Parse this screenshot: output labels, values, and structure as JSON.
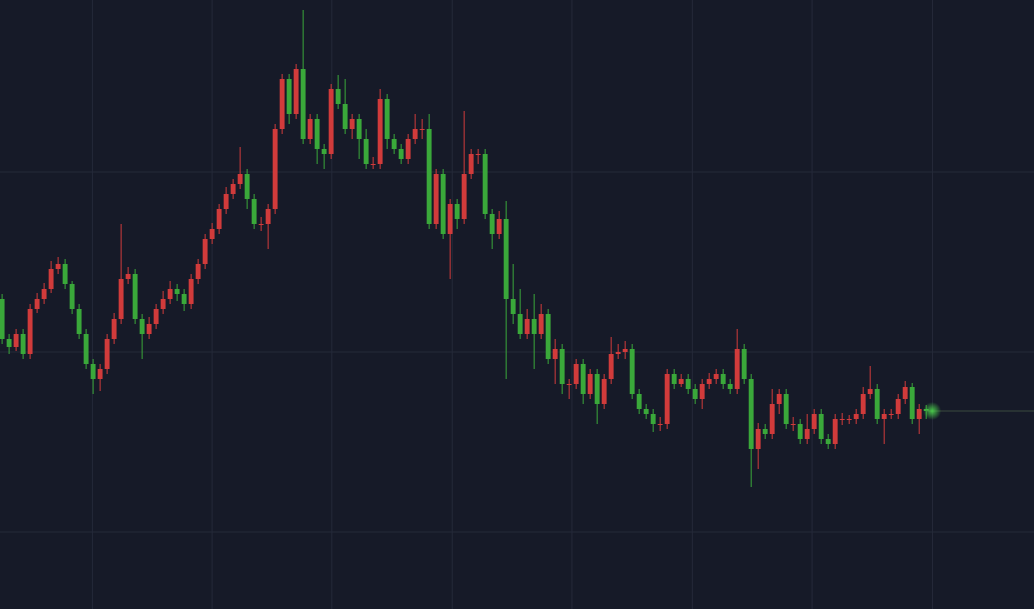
{
  "chart_data": {
    "type": "candlestick",
    "up_color": "#d13b3b",
    "down_color": "#3aa83a",
    "grid": true,
    "last_price_line": true,
    "ylim": [
      0,
      609
    ],
    "yticks": [
      77,
      257,
      437
    ],
    "xlim": [
      -0.3,
      147.4
    ],
    "xticks": [
      12.9,
      30,
      47.1,
      64.3,
      81.4,
      98.6,
      115.7,
      132.9
    ],
    "open": [
      310,
      270,
      262,
      275,
      255,
      300,
      310,
      320,
      340,
      345,
      325,
      300,
      275,
      245,
      230,
      240,
      270,
      290,
      330,
      335,
      290,
      275,
      285,
      300,
      310,
      320,
      315,
      305,
      330,
      345,
      370,
      380,
      400,
      415,
      425,
      435,
      410,
      385,
      385,
      400,
      480,
      530,
      495,
      540,
      470,
      490,
      460,
      455,
      520,
      505,
      480,
      490,
      470,
      445,
      445,
      510,
      470,
      460,
      450,
      470,
      480,
      480,
      385,
      435,
      375,
      405,
      390,
      435,
      455,
      455,
      395,
      375,
      390,
      310,
      295,
      275,
      290,
      275,
      295,
      250,
      260,
      225,
      225,
      245,
      215,
      235,
      205,
      230,
      255,
      257,
      260,
      215,
      200,
      195,
      185,
      185,
      235,
      225,
      230,
      220,
      210,
      225,
      230,
      235,
      225,
      220,
      260,
      230,
      160,
      180,
      175,
      205,
      215,
      185,
      185,
      170,
      180,
      195,
      170,
      165,
      190,
      190,
      190,
      195,
      215,
      220,
      190,
      195,
      195,
      210,
      222,
      190,
      200
    ],
    "high": [
      315,
      275,
      280,
      280,
      305,
      316,
      326,
      348,
      352,
      350,
      328,
      305,
      280,
      250,
      245,
      275,
      296,
      385,
      342,
      340,
      295,
      292,
      305,
      318,
      328,
      325,
      320,
      335,
      350,
      375,
      386,
      405,
      422,
      430,
      462,
      440,
      415,
      392,
      405,
      485,
      535,
      535,
      545,
      599,
      495,
      495,
      465,
      525,
      534,
      530,
      495,
      495,
      480,
      452,
      520,
      515,
      475,
      465,
      475,
      495,
      490,
      495,
      440,
      440,
      410,
      410,
      498,
      460,
      460,
      460,
      400,
      398,
      408,
      345,
      320,
      300,
      315,
      305,
      300,
      270,
      265,
      230,
      250,
      250,
      240,
      240,
      235,
      272,
      265,
      268,
      265,
      220,
      205,
      200,
      192,
      240,
      240,
      235,
      235,
      225,
      230,
      236,
      240,
      240,
      230,
      280,
      265,
      235,
      186,
      185,
      220,
      220,
      220,
      192,
      190,
      195,
      200,
      200,
      175,
      195,
      196,
      194,
      200,
      222,
      243,
      225,
      200,
      200,
      215,
      228,
      226,
      205,
      204
    ],
    "low": [
      265,
      255,
      258,
      250,
      250,
      296,
      305,
      316,
      335,
      320,
      295,
      270,
      240,
      215,
      218,
      235,
      265,
      285,
      325,
      285,
      250,
      270,
      280,
      295,
      305,
      308,
      298,
      300,
      325,
      340,
      365,
      375,
      395,
      410,
      420,
      400,
      380,
      378,
      360,
      395,
      475,
      485,
      490,
      465,
      465,
      445,
      440,
      450,
      500,
      475,
      470,
      450,
      440,
      440,
      440,
      460,
      455,
      445,
      445,
      465,
      470,
      380,
      380,
      370,
      330,
      380,
      385,
      430,
      445,
      390,
      360,
      370,
      230,
      285,
      270,
      270,
      240,
      270,
      245,
      225,
      215,
      210,
      220,
      205,
      210,
      185,
      200,
      225,
      250,
      250,
      210,
      195,
      190,
      177,
      178,
      180,
      220,
      222,
      215,
      205,
      200,
      220,
      225,
      220,
      215,
      215,
      225,
      122,
      140,
      170,
      170,
      195,
      180,
      178,
      165,
      165,
      175,
      165,
      160,
      160,
      184,
      185,
      185,
      190,
      210,
      185,
      165,
      190,
      190,
      205,
      185,
      175,
      190
    ],
    "close": [
      270,
      262,
      275,
      255,
      300,
      310,
      320,
      340,
      345,
      325,
      300,
      275,
      245,
      230,
      240,
      270,
      290,
      330,
      335,
      290,
      275,
      285,
      300,
      310,
      320,
      315,
      305,
      330,
      345,
      370,
      380,
      400,
      415,
      425,
      435,
      410,
      385,
      385,
      400,
      480,
      530,
      495,
      540,
      470,
      490,
      460,
      455,
      520,
      505,
      480,
      490,
      470,
      445,
      445,
      510,
      470,
      460,
      450,
      470,
      480,
      480,
      385,
      435,
      375,
      405,
      390,
      435,
      455,
      455,
      395,
      375,
      390,
      310,
      295,
      275,
      290,
      275,
      295,
      250,
      260,
      225,
      225,
      245,
      215,
      235,
      205,
      230,
      255,
      257,
      260,
      215,
      200,
      195,
      185,
      185,
      235,
      225,
      230,
      220,
      210,
      225,
      230,
      235,
      225,
      220,
      260,
      230,
      160,
      180,
      175,
      205,
      215,
      185,
      185,
      170,
      180,
      195,
      170,
      165,
      190,
      190,
      190,
      195,
      215,
      220,
      190,
      195,
      195,
      210,
      222,
      190,
      200,
      198
    ]
  }
}
